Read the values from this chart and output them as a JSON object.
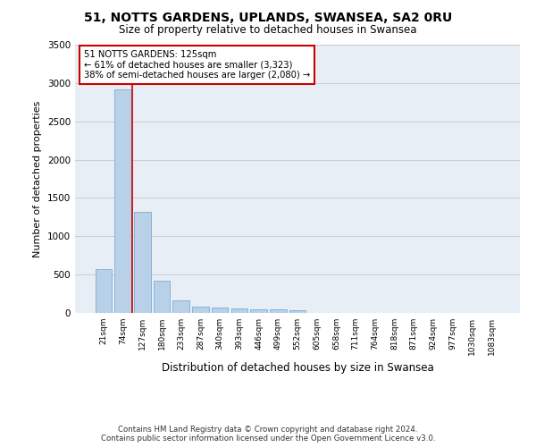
{
  "title1": "51, NOTTS GARDENS, UPLANDS, SWANSEA, SA2 0RU",
  "title2": "Size of property relative to detached houses in Swansea",
  "xlabel": "Distribution of detached houses by size in Swansea",
  "ylabel": "Number of detached properties",
  "categories": [
    "21sqm",
    "74sqm",
    "127sqm",
    "180sqm",
    "233sqm",
    "287sqm",
    "340sqm",
    "393sqm",
    "446sqm",
    "499sqm",
    "552sqm",
    "605sqm",
    "658sqm",
    "711sqm",
    "764sqm",
    "818sqm",
    "871sqm",
    "924sqm",
    "977sqm",
    "1030sqm",
    "1083sqm"
  ],
  "values": [
    570,
    2920,
    1320,
    415,
    160,
    85,
    65,
    60,
    50,
    50,
    40,
    5,
    5,
    5,
    5,
    5,
    5,
    5,
    5,
    5,
    5
  ],
  "bar_color": "#b8d0e8",
  "bar_edge_color": "#7aafd4",
  "annotation_text_line1": "51 NOTTS GARDENS: 125sqm",
  "annotation_text_line2": "← 61% of detached houses are smaller (3,323)",
  "annotation_text_line3": "38% of semi-detached houses are larger (2,080) →",
  "annotation_box_facecolor": "#ffffff",
  "annotation_box_edgecolor": "#cc0000",
  "vline_color": "#cc0000",
  "ylim": [
    0,
    3500
  ],
  "yticks": [
    0,
    500,
    1000,
    1500,
    2000,
    2500,
    3000,
    3500
  ],
  "grid_color": "#cccccc",
  "background_color": "#e8eef5",
  "footer_line1": "Contains HM Land Registry data © Crown copyright and database right 2024.",
  "footer_line2": "Contains public sector information licensed under the Open Government Licence v3.0."
}
